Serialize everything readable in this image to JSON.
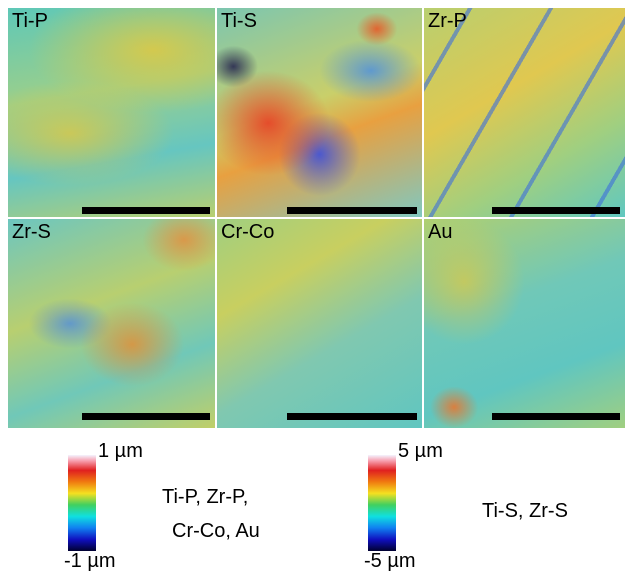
{
  "panels": [
    {
      "label": "Ti-P"
    },
    {
      "label": "Ti-S"
    },
    {
      "label": "Zr-P"
    },
    {
      "label": "Zr-S"
    },
    {
      "label": "Cr-Co"
    },
    {
      "label": "Au"
    }
  ],
  "colorbars": [
    {
      "max_label": "1 µm",
      "min_label": "-1 µm",
      "samples": [
        "Ti-P, Zr-P,",
        "Cr-Co, Au"
      ]
    },
    {
      "max_label": "5 µm",
      "min_label": "-5 µm",
      "samples": [
        "Ti-S, Zr-S"
      ]
    }
  ]
}
